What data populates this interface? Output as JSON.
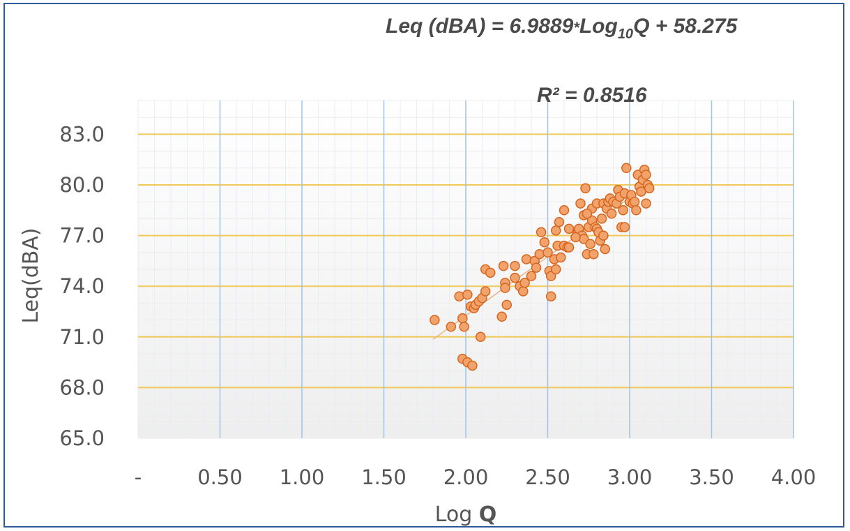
{
  "chart_data": {
    "type": "scatter",
    "title": "",
    "xlabel_prefix": "Log ",
    "xlabel_bold": "Q",
    "ylabel": "Leq(dBA)",
    "equation": {
      "prefix": "Leq (dBA) = 6.9889",
      "operator": "*",
      "log": "Log",
      "base": "10",
      "suffix": "Q + 58.275"
    },
    "r2_label": "R² = 0.8516",
    "trendline": {
      "slope": 6.9889,
      "intercept": 58.275,
      "x_range": [
        1.8,
        3.1
      ]
    },
    "xlim": [
      0,
      4
    ],
    "ylim": [
      65,
      85
    ],
    "x_ticks": [
      {
        "value": 0,
        "label": "-"
      },
      {
        "value": 0.5,
        "label": "0.50"
      },
      {
        "value": 1.0,
        "label": "1.00"
      },
      {
        "value": 1.5,
        "label": "1.50"
      },
      {
        "value": 2.0,
        "label": "2.00"
      },
      {
        "value": 2.5,
        "label": "2.50"
      },
      {
        "value": 3.0,
        "label": "3.00"
      },
      {
        "value": 3.5,
        "label": "3.50"
      },
      {
        "value": 4.0,
        "label": "4.00"
      }
    ],
    "y_ticks": [
      {
        "value": 65,
        "label": "65.0"
      },
      {
        "value": 68,
        "label": "68.0"
      },
      {
        "value": 71,
        "label": "71.0"
      },
      {
        "value": 74,
        "label": "74.0"
      },
      {
        "value": 77,
        "label": "77.0"
      },
      {
        "value": 80,
        "label": "80.0"
      },
      {
        "value": 83,
        "label": "83.0"
      }
    ],
    "grid": true,
    "colors": {
      "marker_fill": "#f2a36b",
      "marker_stroke": "#d4661f",
      "hgrid": "#f0c95a",
      "vgrid": "#9dc3e6",
      "trendline": "#e8b48a",
      "frame": "#2e5b9a"
    },
    "points": [
      [
        1.81,
        72.0
      ],
      [
        1.91,
        71.6
      ],
      [
        1.96,
        73.4
      ],
      [
        1.98,
        72.1
      ],
      [
        1.99,
        71.6
      ],
      [
        1.98,
        69.7
      ],
      [
        2.01,
        69.5
      ],
      [
        2.01,
        73.5
      ],
      [
        2.03,
        72.8
      ],
      [
        2.04,
        69.3
      ],
      [
        2.05,
        72.7
      ],
      [
        2.06,
        72.9
      ],
      [
        2.08,
        73.1
      ],
      [
        2.09,
        71.0
      ],
      [
        2.1,
        73.3
      ],
      [
        2.12,
        73.7
      ],
      [
        2.12,
        75.0
      ],
      [
        2.15,
        74.8
      ],
      [
        2.22,
        72.2
      ],
      [
        2.23,
        75.2
      ],
      [
        2.24,
        74.2
      ],
      [
        2.24,
        73.9
      ],
      [
        2.25,
        72.9
      ],
      [
        2.3,
        75.2
      ],
      [
        2.3,
        74.5
      ],
      [
        2.33,
        74.0
      ],
      [
        2.35,
        73.7
      ],
      [
        2.36,
        74.2
      ],
      [
        2.37,
        75.6
      ],
      [
        2.4,
        74.6
      ],
      [
        2.42,
        75.5
      ],
      [
        2.43,
        75.1
      ],
      [
        2.45,
        75.9
      ],
      [
        2.46,
        77.2
      ],
      [
        2.48,
        76.6
      ],
      [
        2.5,
        76.0
      ],
      [
        2.51,
        74.9
      ],
      [
        2.52,
        74.6
      ],
      [
        2.52,
        73.4
      ],
      [
        2.54,
        75.6
      ],
      [
        2.55,
        75.0
      ],
      [
        2.55,
        77.3
      ],
      [
        2.56,
        76.4
      ],
      [
        2.57,
        77.8
      ],
      [
        2.58,
        75.7
      ],
      [
        2.6,
        78.5
      ],
      [
        2.6,
        76.4
      ],
      [
        2.62,
        76.3
      ],
      [
        2.63,
        76.3
      ],
      [
        2.63,
        77.4
      ],
      [
        2.68,
        77.1
      ],
      [
        2.69,
        77.4
      ],
      [
        2.7,
        78.9
      ],
      [
        2.71,
        77.0
      ],
      [
        2.72,
        78.2
      ],
      [
        2.72,
        76.8
      ],
      [
        2.73,
        79.8
      ],
      [
        2.74,
        75.9
      ],
      [
        2.75,
        77.5
      ],
      [
        2.76,
        76.5
      ],
      [
        2.77,
        78.6
      ],
      [
        2.77,
        77.9
      ],
      [
        2.78,
        75.9
      ],
      [
        2.79,
        77.5
      ],
      [
        2.8,
        78.9
      ],
      [
        2.8,
        77.4
      ],
      [
        2.81,
        77.2
      ],
      [
        2.82,
        76.7
      ],
      [
        2.83,
        78.0
      ],
      [
        2.84,
        78.9
      ],
      [
        2.84,
        77.0
      ],
      [
        2.85,
        76.2
      ],
      [
        2.86,
        78.6
      ],
      [
        2.87,
        79.0
      ],
      [
        2.88,
        79.2
      ],
      [
        2.89,
        78.3
      ],
      [
        2.9,
        79.0
      ],
      [
        2.92,
        78.9
      ],
      [
        2.93,
        79.7
      ],
      [
        2.94,
        79.3
      ],
      [
        2.95,
        77.5
      ],
      [
        2.96,
        78.5
      ],
      [
        2.97,
        79.5
      ],
      [
        2.97,
        77.5
      ],
      [
        2.98,
        81.0
      ],
      [
        3.0,
        79.0
      ],
      [
        3.01,
        79.4
      ],
      [
        3.02,
        78.9
      ],
      [
        3.03,
        79.0
      ],
      [
        3.04,
        78.5
      ],
      [
        3.05,
        80.6
      ],
      [
        3.06,
        79.9
      ],
      [
        3.07,
        79.6
      ],
      [
        3.08,
        80.3
      ],
      [
        3.09,
        80.9
      ],
      [
        3.1,
        78.9
      ],
      [
        3.1,
        80.6
      ],
      [
        3.11,
        80.0
      ],
      [
        3.12,
        79.8
      ],
      [
        2.67,
        76.9
      ],
      [
        2.74,
        78.3
      ]
    ]
  }
}
